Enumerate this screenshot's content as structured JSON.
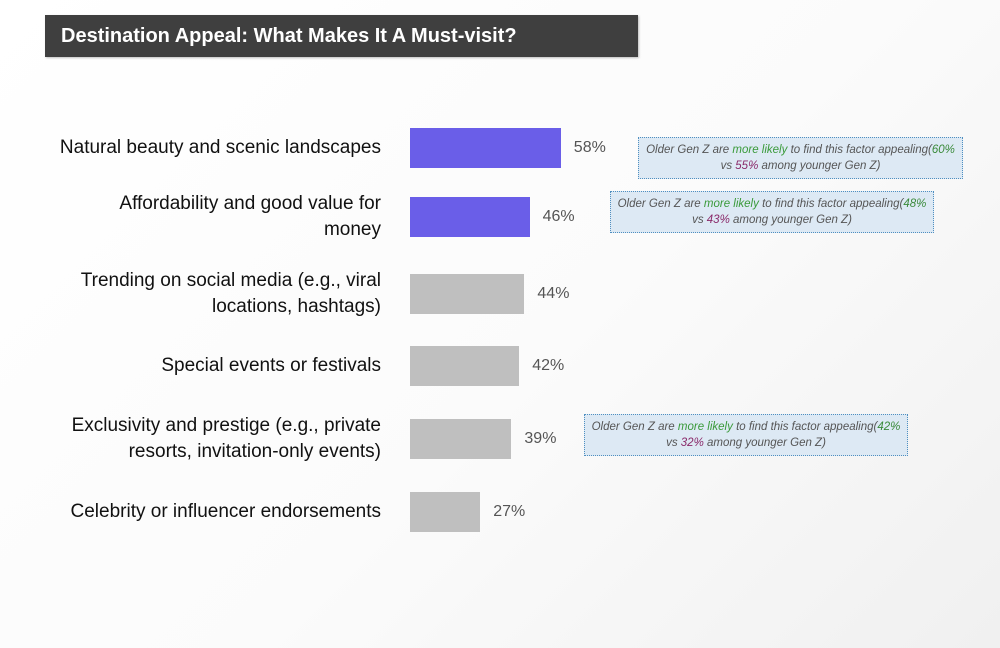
{
  "header": {
    "title": "Destination Appeal: What Makes It A Must-visit?"
  },
  "colors": {
    "highlight_bar": "#6a5ee8",
    "standard_bar": "#bfbfbf",
    "title_bg": "#3f3f3f",
    "note_bg": "#dde9f4"
  },
  "chart_data": {
    "type": "bar",
    "orientation": "horizontal",
    "categories": [
      "Natural beauty and scenic landscapes",
      "Affordability and good value for money",
      "Trending on social media (e.g., viral locations, hashtags)",
      "Special events or festivals",
      "Exclusivity and prestige (e.g., private resorts, invitation-only events)",
      "Celebrity or influencer endorsements"
    ],
    "label_lines": [
      [
        "Natural beauty and scenic landscapes"
      ],
      [
        "Affordability and good value for",
        "money"
      ],
      [
        "Trending on social media (e.g., viral",
        "locations, hashtags)"
      ],
      [
        "Special events or festivals"
      ],
      [
        "Exclusivity and prestige (e.g., private",
        "resorts, invitation-only events)"
      ],
      [
        "Celebrity or influencer endorsements"
      ]
    ],
    "values": [
      58,
      46,
      44,
      42,
      39,
      27
    ],
    "value_labels": [
      "58%",
      "46%",
      "44%",
      "42%",
      "39%",
      "27%"
    ],
    "highlighted": [
      true,
      true,
      false,
      false,
      false,
      false
    ],
    "xlim": [
      0,
      100
    ],
    "grid": false,
    "legend": "none"
  },
  "notes": [
    {
      "category_index": 0,
      "prefix": "Older Gen Z are ",
      "emph": "more likely",
      "mid": " to find this factor appealing(",
      "older": "60%",
      "vs": " vs ",
      "younger": "55%",
      "suffix": " among younger Gen Z)"
    },
    {
      "category_index": 1,
      "prefix": "Older Gen Z are ",
      "emph": "more likely",
      "mid": " to find this factor appealing(",
      "older": "48%",
      "vs": " vs ",
      "younger": "43%",
      "suffix": " among younger Gen Z)"
    },
    {
      "category_index": 4,
      "prefix": "Older Gen Z are ",
      "emph": "more likely",
      "mid": " to find this factor appealing(",
      "older": "42%",
      "vs": " vs ",
      "younger": "32%",
      "suffix": " among younger Gen Z)"
    }
  ]
}
